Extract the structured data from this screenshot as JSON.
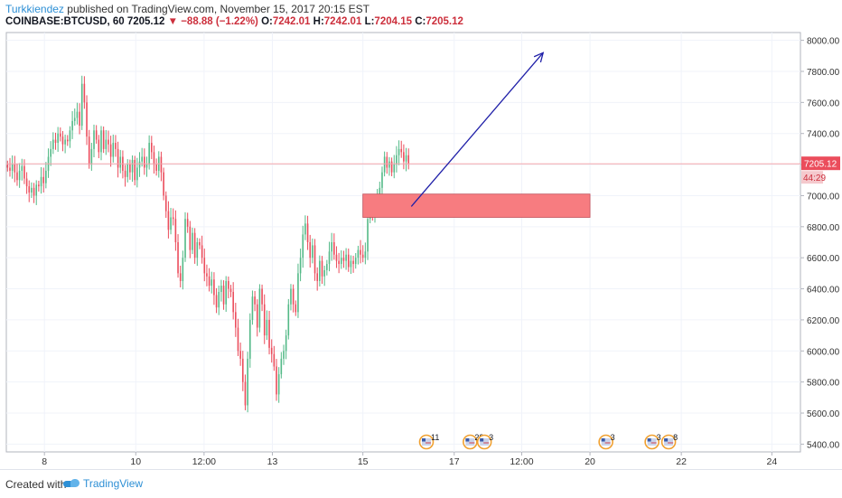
{
  "header": {
    "author": "Turkkiendez",
    "published": "published on TradingView.com, November 15, 2017 20:15 EST",
    "symbol": "COINBASE:BTCUSD, 60",
    "last": "7205.12",
    "change": "▼ −88.88 (−1.22%)",
    "open_label": "O:",
    "open": "7242.01",
    "high_label": "H:",
    "high": "7242.01",
    "low_label": "L:",
    "low": "7204.15",
    "close_label": "C:",
    "close": "7205.12"
  },
  "footer": {
    "created": "Created with",
    "brand": "TradingView"
  },
  "chart_data": {
    "type": "candlestick",
    "ylim": [
      5350,
      8050
    ],
    "y_ticks": [
      5400,
      5600,
      5800,
      6000,
      6200,
      6400,
      6600,
      6800,
      7000,
      7200,
      7400,
      7600,
      7800,
      8000
    ],
    "y_tick_labels": [
      "5400.00",
      "5600.00",
      "5800.00",
      "6000.00",
      "6200.00",
      "6400.00",
      "6600.00",
      "6800.00",
      "7000.00",
      "7200.00",
      "7400.00",
      "7600.00",
      "7800.00",
      "8000.00"
    ],
    "x_tick_labels": [
      "8",
      "10",
      "12:00",
      "13",
      "15",
      "17",
      "12:00",
      "20",
      "22",
      "24"
    ],
    "x_tick_pos": [
      0.048,
      0.163,
      0.249,
      0.335,
      0.449,
      0.564,
      0.649,
      0.735,
      0.85,
      0.964
    ],
    "price_line": 7205.12,
    "price_label": "7205.12",
    "countdown": "44:29",
    "colors": {
      "up": "#53b987",
      "down": "#eb4d5c",
      "zone": "#f77c80",
      "arrow": "#1f1fa8",
      "grid": "#f0f3fa"
    },
    "candles_close": [
      7180,
      7160,
      7200,
      7150,
      7100,
      7160,
      7190,
      7110,
      7060,
      7020,
      7050,
      7000,
      7070,
      7060,
      7120,
      7080,
      7160,
      7250,
      7300,
      7360,
      7340,
      7400,
      7380,
      7330,
      7360,
      7350,
      7420,
      7480,
      7500,
      7540,
      7450,
      7720,
      7600,
      7380,
      7200,
      7300,
      7420,
      7360,
      7280,
      7420,
      7300,
      7360,
      7330,
      7250,
      7340,
      7300,
      7180,
      7250,
      7160,
      7120,
      7200,
      7150,
      7230,
      7100,
      7180,
      7220,
      7250,
      7180,
      7200,
      7340,
      7280,
      7200,
      7160,
      7250,
      7150,
      7000,
      6900,
      6780,
      6860,
      6850,
      6700,
      6500,
      6450,
      6600,
      6850,
      6800,
      6650,
      6760,
      6600,
      6700,
      6680,
      6600,
      6500,
      6480,
      6420,
      6460,
      6360,
      6280,
      6380,
      6420,
      6300,
      6450,
      6400,
      6380,
      6250,
      6150,
      6000,
      5950,
      5800,
      5650,
      5950,
      6200,
      6350,
      6300,
      6150,
      6400,
      6300,
      6100,
      6200,
      6020,
      5980,
      5900,
      5720,
      5850,
      5950,
      6000,
      6100,
      6300,
      6400,
      6300,
      6250,
      6500,
      6600,
      6750,
      6820,
      6700,
      6600,
      6680,
      6500,
      6450,
      6580,
      6480,
      6520,
      6560,
      6640,
      6700,
      6620,
      6580,
      6560,
      6600,
      6580,
      6620,
      6540,
      6580,
      6560,
      6600,
      6650,
      6620,
      6600,
      6640,
      6850,
      6920,
      6880,
      6900,
      7000,
      7050,
      7150,
      7250,
      7180,
      7220,
      7150,
      7200,
      7260,
      7300,
      7280,
      7220,
      7260,
      7205
    ],
    "zone": {
      "x_start": 0.449,
      "x_end": 0.735,
      "y_low": 6860,
      "y_high": 7010
    },
    "arrow": {
      "x_start": 0.51,
      "y_start": 6930,
      "x_end": 0.676,
      "y_end": 7920
    },
    "events": [
      {
        "x": 0.529,
        "label": "11"
      },
      {
        "x": 0.584,
        "label": "28"
      },
      {
        "x": 0.602,
        "label": "3"
      },
      {
        "x": 0.755,
        "label": "3"
      },
      {
        "x": 0.813,
        "label": "3"
      },
      {
        "x": 0.834,
        "label": "8"
      }
    ]
  }
}
